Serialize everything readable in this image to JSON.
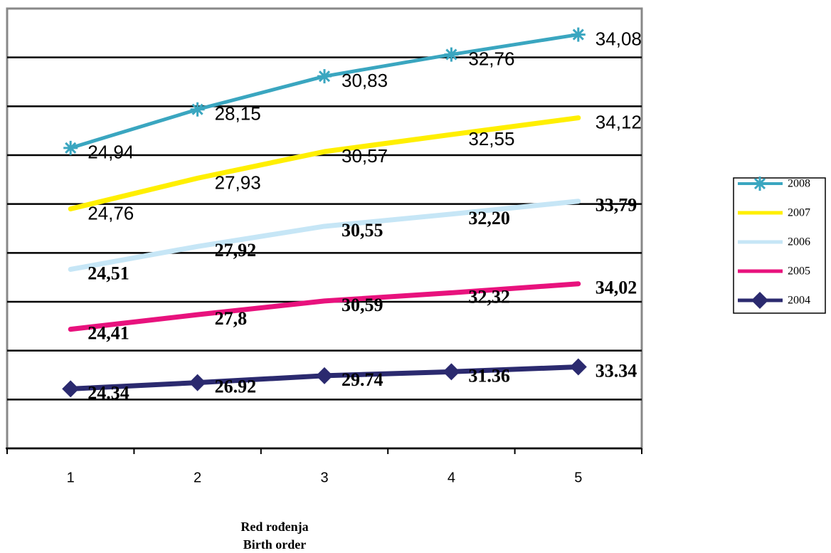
{
  "chart_data": {
    "type": "line",
    "stacked": true,
    "categories": [
      "1",
      "2",
      "3",
      "4",
      "5"
    ],
    "x_label": [
      "Red rođenja",
      "Birth order"
    ],
    "ylim": [
      0,
      180
    ],
    "yticks": [
      20,
      40,
      60,
      80,
      100,
      120,
      140,
      160
    ],
    "grid": true,
    "legend": "right",
    "series": [
      {
        "name": "2004",
        "color": "#2b2a6f",
        "marker": "diamond",
        "values": [
          24.34,
          26.92,
          29.74,
          31.36,
          33.34
        ]
      },
      {
        "name": "2005",
        "color": "#e8127d",
        "marker": "none",
        "values": [
          24.41,
          27.8,
          30.59,
          32.32,
          34.02
        ],
        "value_labels": [
          "24,41",
          "27,8",
          "30,59",
          "32,32",
          "34,02"
        ]
      },
      {
        "name": "2006",
        "color": "#c6e6f6",
        "marker": "none",
        "values": [
          24.51,
          27.92,
          30.55,
          32.2,
          33.79
        ],
        "value_labels": [
          "24,51",
          "27,92",
          "30,55",
          "32,20",
          "33,79"
        ]
      },
      {
        "name": "2007",
        "color": "#ffef00",
        "marker": "none",
        "values": [
          24.76,
          27.93,
          30.57,
          32.55,
          34.12
        ],
        "value_labels": [
          "24,76",
          "27,93",
          "30,57",
          "32,55",
          "34,12"
        ]
      },
      {
        "name": "2008",
        "color": "#3aa6c0",
        "marker": "star",
        "values": [
          24.94,
          28.15,
          30.83,
          32.76,
          34.08
        ],
        "value_labels": [
          "24,94",
          "28,15",
          "30,83",
          "32,76",
          "34,08"
        ]
      }
    ]
  }
}
